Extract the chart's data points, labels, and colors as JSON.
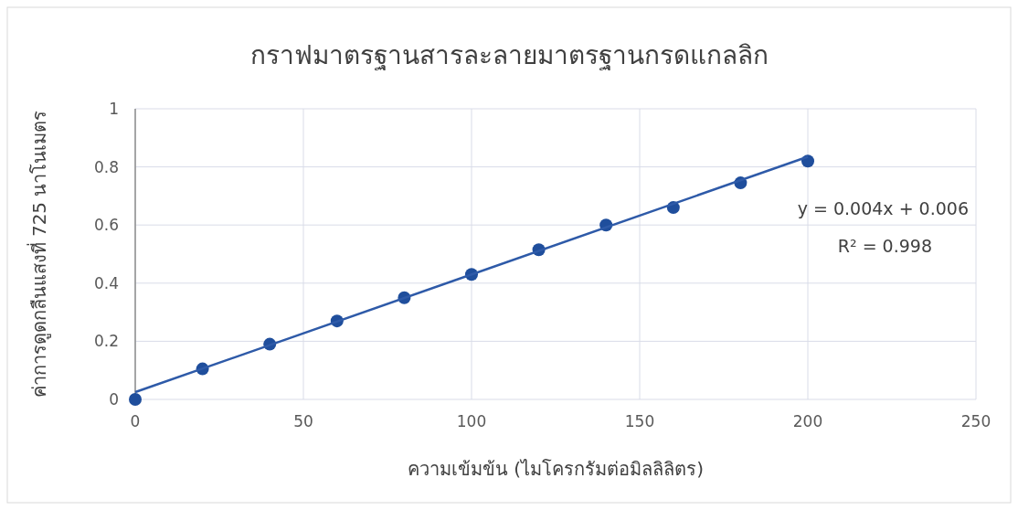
{
  "chart_data": {
    "type": "scatter",
    "title": "กราฟมาตรฐานสารละลายมาตรฐานกรดแกลลิก",
    "xlabel": "ความเข้มข้น (ไมโครกรัมต่อมิลลิลิตร)",
    "ylabel": "ค่าการดูดกลืนแสงที่ 725 นาโนเมตร",
    "xlim": [
      0,
      250
    ],
    "ylim": [
      0,
      1
    ],
    "xticks": [
      0,
      50,
      100,
      150,
      200,
      250
    ],
    "yticks": [
      0,
      0.2,
      0.4,
      0.6,
      0.8,
      1
    ],
    "grid": true,
    "series": [
      {
        "color": "#1f4e9c",
        "marker": "circle",
        "x": [
          0,
          20,
          40,
          60,
          80,
          100,
          120,
          140,
          160,
          180,
          200
        ],
        "values": [
          0,
          0.105,
          0.19,
          0.27,
          0.35,
          0.43,
          0.515,
          0.6,
          0.66,
          0.745,
          0.82
        ]
      },
      {
        "type": "line",
        "color": "#2e5aa8",
        "x": [
          0,
          200
        ],
        "values": [
          0.025,
          0.835
        ]
      }
    ],
    "annotations": [
      "y = 0.004x + 0.006",
      "R² = 0.998"
    ]
  }
}
